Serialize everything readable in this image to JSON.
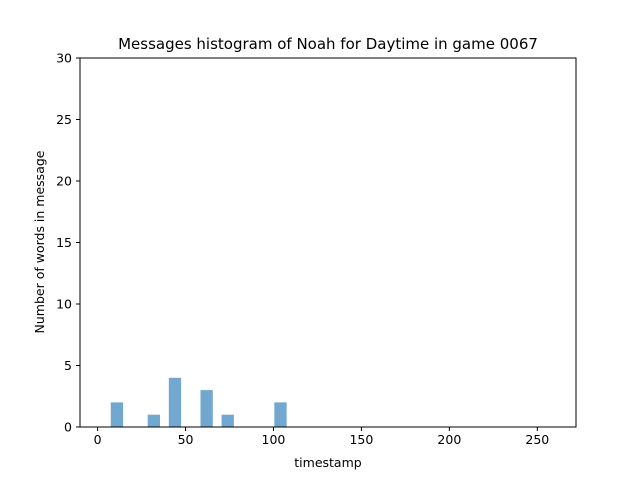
{
  "chart_data": {
    "type": "bar",
    "title": "Messages histogram of Noah for Daytime in game 0067",
    "xlabel": "timestamp",
    "ylabel": "Number of words in message",
    "xlim": [
      -10,
      272
    ],
    "ylim": [
      0,
      30
    ],
    "xticks": [
      0,
      50,
      100,
      150,
      200,
      250
    ],
    "yticks": [
      0,
      5,
      10,
      15,
      20,
      25,
      30
    ],
    "bar_width": 7,
    "grid": false,
    "legend": "none",
    "color": "#72a7d0",
    "series": [
      {
        "x": [
          11,
          32,
          44,
          62,
          74,
          104
        ],
        "values": [
          2,
          1,
          4,
          3,
          1,
          2
        ]
      }
    ]
  }
}
